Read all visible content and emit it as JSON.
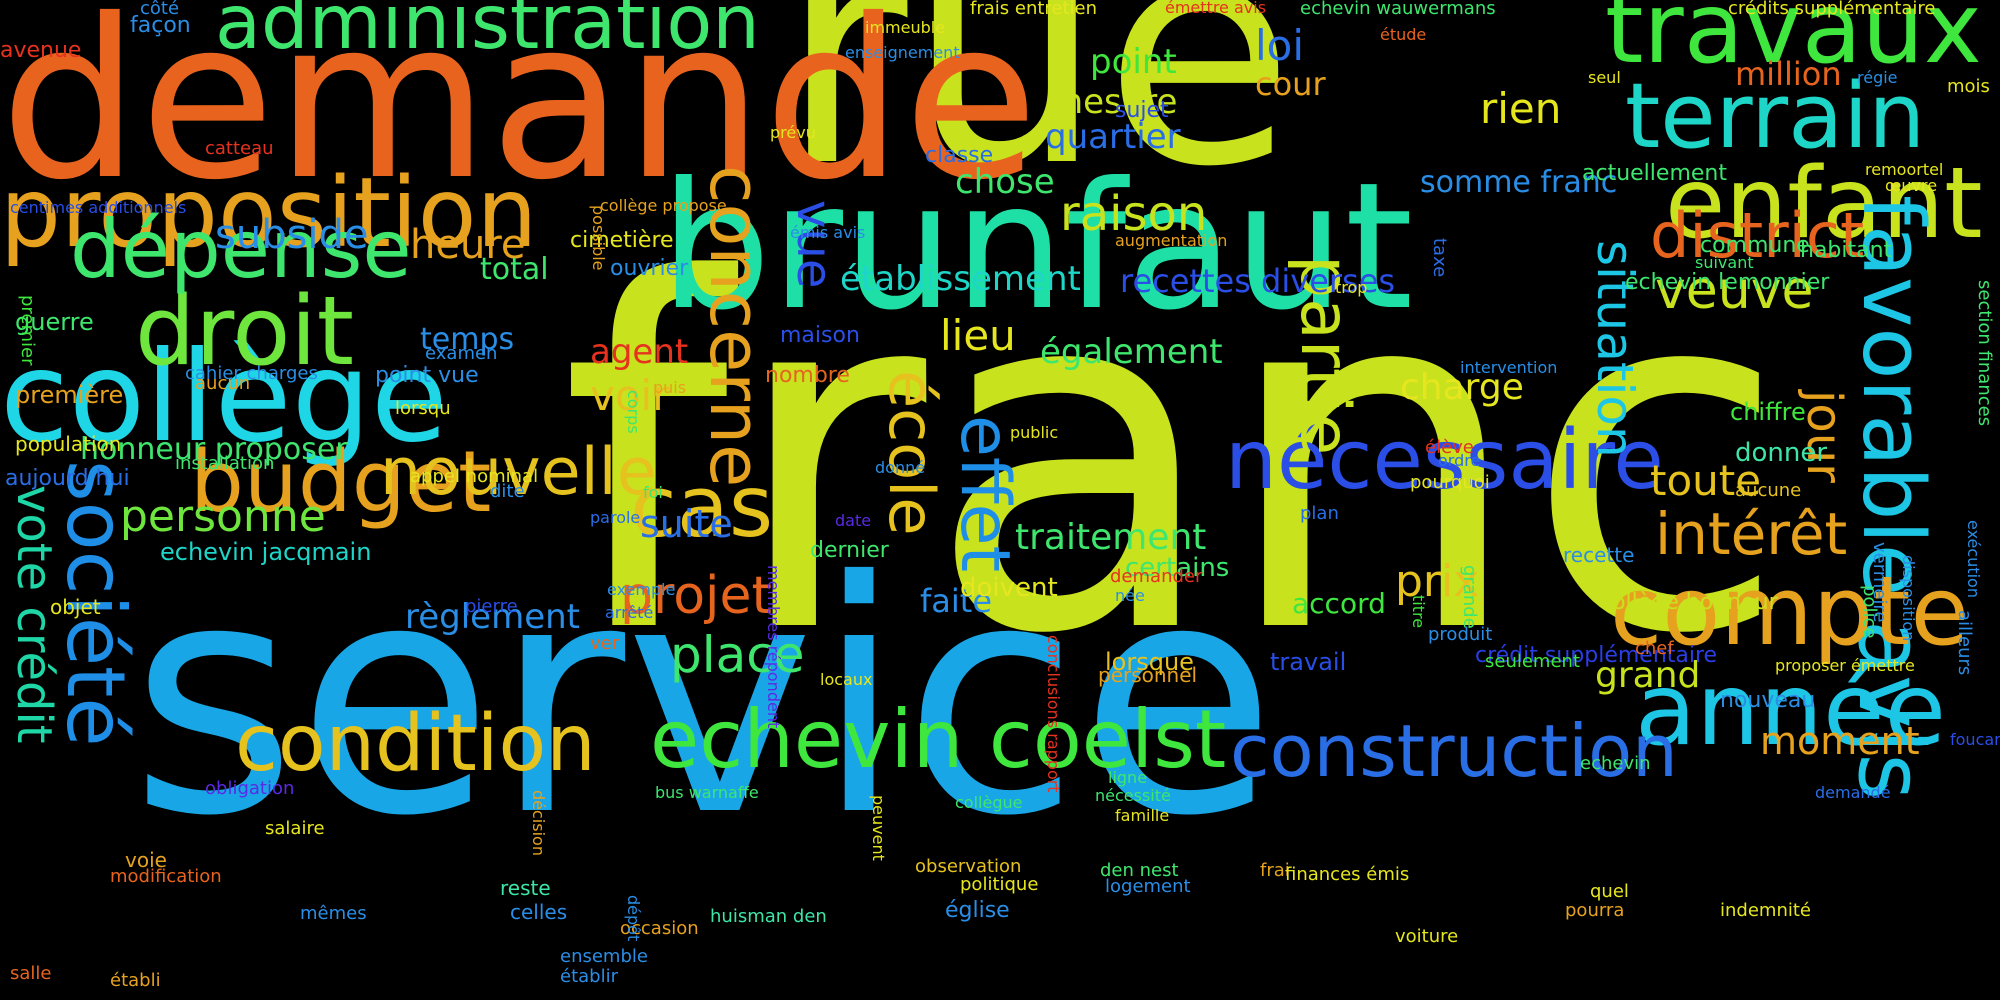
{
  "words": [
    {
      "text": "franc",
      "color": "#c8e21e"
    },
    {
      "text": "service",
      "color": "#19a6e6"
    },
    {
      "text": "rue",
      "color": "#c8e21e"
    },
    {
      "text": "demande",
      "color": "#e8641e"
    },
    {
      "text": "brunfaut",
      "color": "#1ee0a6"
    },
    {
      "text": "collège",
      "color": "#1ed6e6"
    },
    {
      "text": "proposition",
      "color": "#e6a21e"
    },
    {
      "text": "administration",
      "color": "#3ee66e"
    },
    {
      "text": "travaux",
      "color": "#3ee63e"
    },
    {
      "text": "terrain",
      "color": "#1ed6c8"
    },
    {
      "text": "enfant",
      "color": "#c8e21e"
    },
    {
      "text": "favorable",
      "color": "#1ec6e6"
    },
    {
      "text": "avis",
      "color": "#1ec6e6"
    },
    {
      "text": "compte",
      "color": "#e6a21e"
    },
    {
      "text": "année",
      "color": "#1ec6e6"
    },
    {
      "text": "construction",
      "color": "#2a6ee6"
    },
    {
      "text": "echevin coelst",
      "color": "#3ee63e"
    },
    {
      "text": "condition",
      "color": "#e6c21e"
    },
    {
      "text": "nécessaire",
      "color": "#2a4ee6"
    },
    {
      "text": "société",
      "color": "#1e8ee6"
    },
    {
      "text": "budget",
      "color": "#e6a21e"
    },
    {
      "text": "droit",
      "color": "#6ee63e"
    },
    {
      "text": "dépense",
      "color": "#3ee66e"
    },
    {
      "text": "concerne",
      "color": "#e6a21e"
    },
    {
      "text": "école",
      "color": "#e6c21e"
    },
    {
      "text": "effet",
      "color": "#1e8ee6"
    },
    {
      "text": "partie",
      "color": "#c8e21e"
    },
    {
      "text": "situation",
      "color": "#1ec6e6"
    },
    {
      "text": "cas",
      "color": "#e6c21e"
    },
    {
      "text": "nouvelle",
      "color": "#e6c21e"
    },
    {
      "text": "district",
      "color": "#e6641e"
    },
    {
      "text": "intérêt",
      "color": "#e6a21e"
    },
    {
      "text": "projet",
      "color": "#e6641e"
    },
    {
      "text": "place",
      "color": "#3ee66e"
    },
    {
      "text": "vote crédit",
      "color": "#1ed6a6"
    },
    {
      "text": "veuve",
      "color": "#c8e21e"
    },
    {
      "text": "jour",
      "color": "#e6a21e"
    },
    {
      "text": "toute",
      "color": "#e6c21e"
    },
    {
      "text": "raison",
      "color": "#c8e21e"
    },
    {
      "text": "personne",
      "color": "#6ee63e"
    },
    {
      "text": "prix",
      "color": "#e6c21e"
    },
    {
      "text": "lieu",
      "color": "#e6e61e"
    },
    {
      "text": "suite",
      "color": "#2a6ee6"
    },
    {
      "text": "voir",
      "color": "#e6c21e"
    },
    {
      "text": "rien",
      "color": "#e6e61e"
    },
    {
      "text": "subside",
      "color": "#2a8ee6"
    },
    {
      "text": "heure",
      "color": "#e6a21e"
    },
    {
      "text": "loi",
      "color": "#2a6ee6"
    },
    {
      "text": "million",
      "color": "#e6641e"
    },
    {
      "text": "vue",
      "color": "#2a4ee6"
    },
    {
      "text": "faite",
      "color": "#2a8ee6"
    },
    {
      "text": "grand",
      "color": "#c8e21e"
    },
    {
      "text": "moment",
      "color": "#e6a21e"
    },
    {
      "text": "traitement",
      "color": "#3ee66e"
    },
    {
      "text": "règlement",
      "color": "#2a8ee6"
    },
    {
      "text": "honneur proposer",
      "color": "#3ee66e"
    },
    {
      "text": "temps",
      "color": "#2a8ee6"
    },
    {
      "text": "total",
      "color": "#3ee66e"
    },
    {
      "text": "agent",
      "color": "#e6321e"
    },
    {
      "text": "charge",
      "color": "#e6e61e"
    },
    {
      "text": "également",
      "color": "#3ee66e"
    },
    {
      "text": "établissement",
      "color": "#1ed6c8"
    },
    {
      "text": "recettes diverses",
      "color": "#2a4ee6"
    },
    {
      "text": "somme franc",
      "color": "#2a8ee6"
    },
    {
      "text": "chose",
      "color": "#3ee66e"
    },
    {
      "text": "quartier",
      "color": "#2a6ee6"
    },
    {
      "text": "mesure",
      "color": "#c8e21e"
    },
    {
      "text": "point",
      "color": "#3ee63e"
    },
    {
      "text": "cour",
      "color": "#e6a21e"
    },
    {
      "text": "guerre",
      "color": "#3ee66e"
    },
    {
      "text": "echevin jacqmain",
      "color": "#1ed6c8"
    },
    {
      "text": "accord",
      "color": "#3ee63e"
    },
    {
      "text": "doivent",
      "color": "#e6e61e"
    },
    {
      "text": "certains",
      "color": "#3ee66e"
    },
    {
      "text": "dernier",
      "color": "#3ee66e"
    },
    {
      "text": "donner",
      "color": "#3ee6a6"
    },
    {
      "text": "chiffre",
      "color": "#3ee63e"
    },
    {
      "text": "lorsque",
      "color": "#e6c21e"
    },
    {
      "text": "travail",
      "color": "#2a4ee6"
    },
    {
      "text": "recette",
      "color": "#2a8ee6"
    },
    {
      "text": "crédit supplémentaire",
      "color": "#2a3ee6"
    },
    {
      "text": "collège honneur",
      "color": "#c8e21e"
    },
    {
      "text": "nouveau",
      "color": "#2a8ee6"
    },
    {
      "text": "echevin lemonnier",
      "color": "#3ee66e"
    },
    {
      "text": "commune",
      "color": "#3ee66e"
    },
    {
      "text": "habitant",
      "color": "#3ee66e"
    },
    {
      "text": "actuellement",
      "color": "#3ee66e"
    },
    {
      "text": "cimetière",
      "color": "#e6e61e"
    },
    {
      "text": "ouvrier",
      "color": "#2a8ee6"
    },
    {
      "text": "maison",
      "color": "#2a4ee6"
    },
    {
      "text": "point vue",
      "color": "#2a8ee6"
    },
    {
      "text": "nombre",
      "color": "#e6641e"
    },
    {
      "text": "première",
      "color": "#e6a21e"
    },
    {
      "text": "population",
      "color": "#e6e61e"
    },
    {
      "text": "aujourd hui",
      "color": "#2a6ee6"
    },
    {
      "text": "objet",
      "color": "#e6e61e"
    },
    {
      "text": "classe",
      "color": "#2a6ee6"
    },
    {
      "text": "sujet",
      "color": "#2a4ee6"
    },
    {
      "text": "avenue",
      "color": "#e6321e"
    },
    {
      "text": "façon",
      "color": "#2a8ee6"
    },
    {
      "text": "côté",
      "color": "#2a8ee6"
    },
    {
      "text": "catteau",
      "color": "#e6321e"
    },
    {
      "text": "centimes additionnels",
      "color": "#2a4ee6"
    },
    {
      "text": "premier",
      "color": "#3ee63e"
    },
    {
      "text": "examen",
      "color": "#2a8ee6"
    },
    {
      "text": "cahier charges",
      "color": "#2a8ee6"
    },
    {
      "text": "aucun",
      "color": "#e6a21e"
    },
    {
      "text": "lorsqu",
      "color": "#e6e61e"
    },
    {
      "text": "installation",
      "color": "#3ee66e"
    },
    {
      "text": "appel nominal",
      "color": "#e6e61e"
    },
    {
      "text": "dite",
      "color": "#2a8ee6"
    },
    {
      "text": "pierre",
      "color": "#2a4ee6"
    },
    {
      "text": "obligation",
      "color": "#5a2ae6"
    },
    {
      "text": "salaire",
      "color": "#e6e61e"
    },
    {
      "text": "voie",
      "color": "#e6a21e"
    },
    {
      "text": "modification",
      "color": "#e6641e"
    },
    {
      "text": "mêmes",
      "color": "#2a8ee6"
    },
    {
      "text": "salle",
      "color": "#e6641e"
    },
    {
      "text": "établi",
      "color": "#e6a21e"
    },
    {
      "text": "celles",
      "color": "#2a8ee6"
    },
    {
      "text": "reste",
      "color": "#3ee6a6"
    },
    {
      "text": "ensemble",
      "color": "#2a8ee6"
    },
    {
      "text": "établir",
      "color": "#2a8ee6"
    },
    {
      "text": "occasion",
      "color": "#e6a21e"
    },
    {
      "text": "huisman den",
      "color": "#3ee6a6"
    },
    {
      "text": "église",
      "color": "#2a8ee6"
    },
    {
      "text": "observation",
      "color": "#e6c21e"
    },
    {
      "text": "politique",
      "color": "#e6e61e"
    },
    {
      "text": "den nest",
      "color": "#3ee66e"
    },
    {
      "text": "logement",
      "color": "#2a8ee6"
    },
    {
      "text": "voiture",
      "color": "#e6e61e"
    },
    {
      "text": "frai",
      "color": "#e6a21e"
    },
    {
      "text": "finances émis",
      "color": "#e6e61e"
    },
    {
      "text": "quel",
      "color": "#e6e61e"
    },
    {
      "text": "pourra",
      "color": "#e6a21e"
    },
    {
      "text": "indemnité",
      "color": "#e6e61e"
    },
    {
      "text": "demandé",
      "color": "#2a6ee6"
    },
    {
      "text": "echevin",
      "color": "#3ee66e"
    },
    {
      "text": "foucart",
      "color": "#2a4ee6"
    },
    {
      "text": "proposer émettre",
      "color": "#e6e61e"
    },
    {
      "text": "chef",
      "color": "#e6641e"
    },
    {
      "text": "seulement",
      "color": "#3ee63e"
    },
    {
      "text": "produit",
      "color": "#2a8ee6"
    },
    {
      "text": "titre",
      "color": "#3ee63e"
    },
    {
      "text": "grande",
      "color": "#3ee66e"
    },
    {
      "text": "plan",
      "color": "#2a6ee6"
    },
    {
      "text": "pourquoi",
      "color": "#e6e61e"
    },
    {
      "text": "ordre",
      "color": "#2a6ee6"
    },
    {
      "text": "élève",
      "color": "#e6321e"
    },
    {
      "text": "aucune",
      "color": "#e6c21e"
    },
    {
      "text": "vermeire",
      "color": "#2a8ee6"
    },
    {
      "text": "police",
      "color": "#3ee66e"
    },
    {
      "text": "exécution",
      "color": "#2a8ee6"
    },
    {
      "text": "disposition",
      "color": "#2a8ee6"
    },
    {
      "text": "ailleurs",
      "color": "#2a8ee6"
    },
    {
      "text": "section finances",
      "color": "#3ee66e"
    },
    {
      "text": "remoortel",
      "color": "#e6e61e"
    },
    {
      "text": "œuvre",
      "color": "#e6e61e"
    },
    {
      "text": "suivant",
      "color": "#3ee66e"
    },
    {
      "text": "régie",
      "color": "#2a8ee6"
    },
    {
      "text": "mois",
      "color": "#e6e61e"
    },
    {
      "text": "crédits supplémentaire",
      "color": "#e6e61e"
    },
    {
      "text": "seul",
      "color": "#e6e61e"
    },
    {
      "text": "étude",
      "color": "#e6641e"
    },
    {
      "text": "echevin wauwermans",
      "color": "#3ee66e"
    },
    {
      "text": "émettre avis",
      "color": "#e6321e"
    },
    {
      "text": "frais entretien",
      "color": "#e6e61e"
    },
    {
      "text": "immeuble",
      "color": "#e6e61e"
    },
    {
      "text": "enseignement",
      "color": "#2a8ee6"
    },
    {
      "text": "prévu",
      "color": "#e6e61e"
    },
    {
      "text": "possible",
      "color": "#e6a21e"
    },
    {
      "text": "collège propose",
      "color": "#e6a21e"
    },
    {
      "text": "émis avis",
      "color": "#2a8ee6"
    },
    {
      "text": "augmentation",
      "color": "#e6a21e"
    },
    {
      "text": "taxe",
      "color": "#2a6ee6"
    },
    {
      "text": "trop",
      "color": "#e6e61e"
    },
    {
      "text": "intervention",
      "color": "#2a8ee6"
    },
    {
      "text": "corps",
      "color": "#3ee66e"
    },
    {
      "text": "puis",
      "color": "#e6a21e"
    },
    {
      "text": "public",
      "color": "#e6e61e"
    },
    {
      "text": "donné",
      "color": "#2a8ee6"
    },
    {
      "text": "membres répondent",
      "color": "#5a2ae6"
    },
    {
      "text": "foi",
      "color": "#3ee66e"
    },
    {
      "text": "parole",
      "color": "#2a6ee6"
    },
    {
      "text": "date",
      "color": "#5a2ae6"
    },
    {
      "text": "conclusions rapport",
      "color": "#e6321e"
    },
    {
      "text": "demander",
      "color": "#e6321e"
    },
    {
      "text": "née",
      "color": "#2a8ee6"
    },
    {
      "text": "exemple",
      "color": "#2a8ee6"
    },
    {
      "text": "arrêté",
      "color": "#2a6ee6"
    },
    {
      "text": "ver",
      "color": "#e6641e"
    },
    {
      "text": "personnel",
      "color": "#e6a21e"
    },
    {
      "text": "locaux",
      "color": "#e6e61e"
    },
    {
      "text": "décision",
      "color": "#e6a21e"
    },
    {
      "text": "bus warnaffe",
      "color": "#3ee66e"
    },
    {
      "text": "peuvent",
      "color": "#e6e61e"
    },
    {
      "text": "collègue",
      "color": "#3ee66e"
    },
    {
      "text": "ligne",
      "color": "#3ee66e"
    },
    {
      "text": "nécessité",
      "color": "#3ee66e"
    },
    {
      "text": "famille",
      "color": "#e6e61e"
    },
    {
      "text": "dépôt",
      "color": "#2a8ee6"
    }
  ]
}
